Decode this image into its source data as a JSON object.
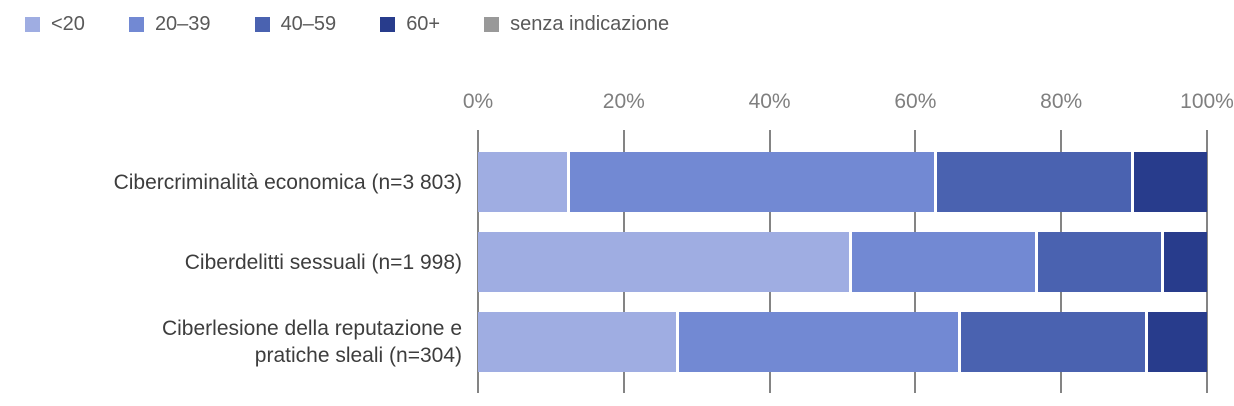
{
  "chart_data": {
    "type": "bar",
    "orientation": "horizontal",
    "stacked": true,
    "unit": "%",
    "title": "",
    "xlabel": "",
    "ylabel": "",
    "xlim": [
      0,
      100
    ],
    "x_ticks": [
      "0%",
      "20%",
      "40%",
      "60%",
      "80%",
      "100%"
    ],
    "x_tick_values": [
      0,
      20,
      40,
      60,
      80,
      100
    ],
    "grid": "vertical gridlines at 20% intervals, visible between bars",
    "legend_position": "top-left",
    "categories": [
      "Cibercriminalità economica (n=3 803)",
      "Ciberdelitti sessuali (n=1 998)",
      "Ciberlesione della reputazione e\npratiche sleali (n=304)"
    ],
    "series": [
      {
        "name": "<20",
        "color": "#9fade2",
        "values": [
          12.2,
          50.9,
          27.1
        ]
      },
      {
        "name": "20–39",
        "color": "#7289d3",
        "values": [
          50.4,
          25.5,
          38.8
        ]
      },
      {
        "name": "40–59",
        "color": "#4a62b0",
        "values": [
          27.0,
          17.3,
          25.6
        ]
      },
      {
        "name": "60+",
        "color": "#283c8c",
        "values": [
          10.4,
          6.3,
          8.5
        ]
      },
      {
        "name": "senza indicazione",
        "color": "#999999",
        "values": [
          0,
          0,
          0
        ]
      }
    ],
    "colors": {
      "gridline": "#848484",
      "axis_label": "#7f7f7f",
      "category_label": "#3d3d3d",
      "legend_label": "#595959"
    }
  }
}
